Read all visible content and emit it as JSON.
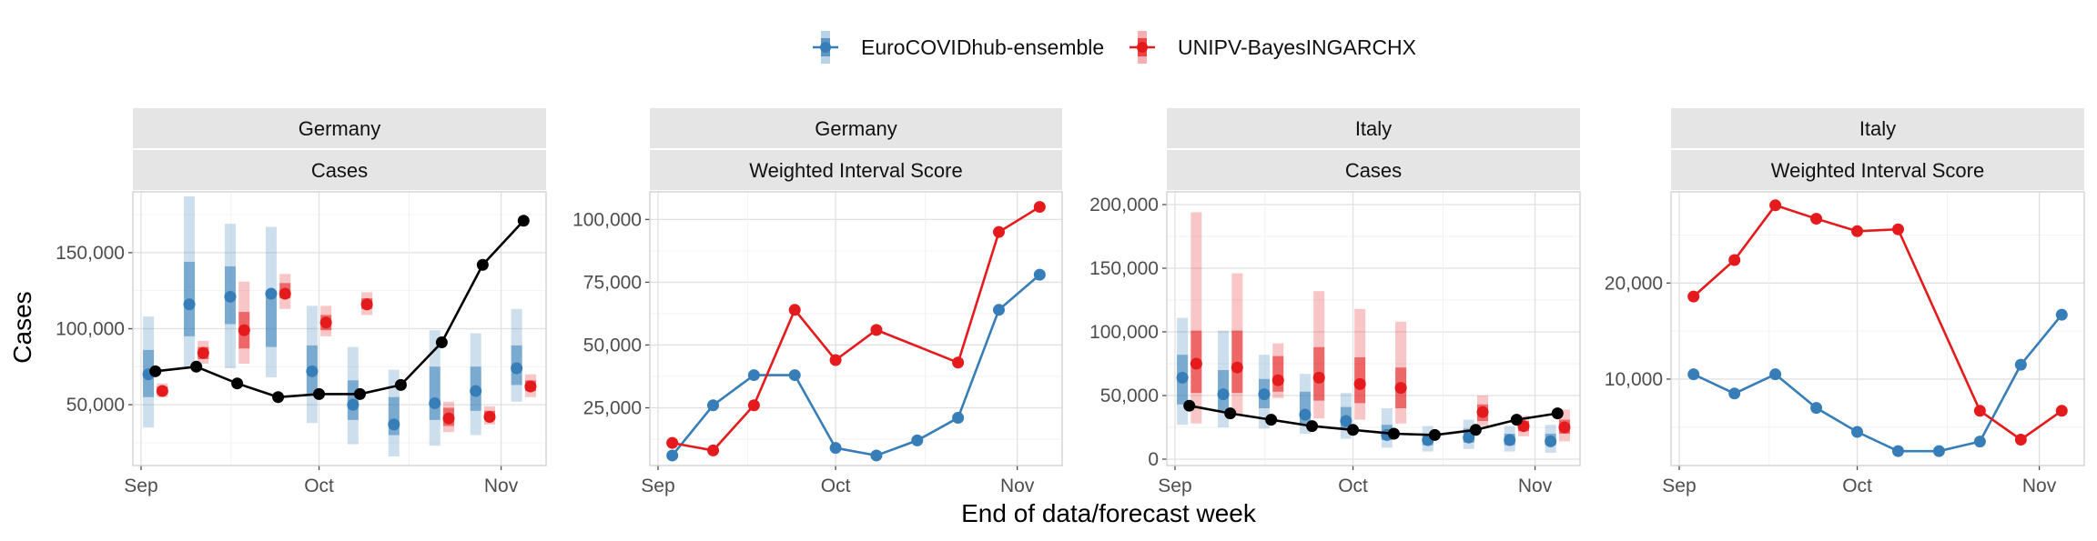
{
  "figure": {
    "xlabel": "End of data/forecast week",
    "ylabel": "Cases",
    "legend": {
      "placement": "top-center",
      "entries": [
        {
          "name": "EuroCOVIDhub-ensemble",
          "color": "#377eb8"
        },
        {
          "name": "UNIPV-BayesINGARCHX",
          "color": "#e41a1c"
        }
      ]
    },
    "x_ticks": [
      "Sep",
      "Oct",
      "Nov"
    ],
    "observed_color": "#000000"
  },
  "chart_data": [
    {
      "type": "line",
      "strip": [
        "Germany",
        "Cases"
      ],
      "x_weeks": [
        0,
        1,
        2,
        3,
        4,
        5,
        6,
        7,
        8,
        9
      ],
      "observed": [
        72000,
        75000,
        64000,
        55000,
        57000,
        57000,
        63000,
        91000,
        142000,
        171000
      ],
      "intervals": {
        "EuroCOVIDhub-ensemble": [
          {
            "median": 70000,
            "inner": [
              55000,
              86000
            ],
            "outer": [
              35000,
              108000
            ]
          },
          {
            "median": 116000,
            "inner": [
              95000,
              144000
            ],
            "outer": [
              75000,
              187000
            ]
          },
          {
            "median": 121000,
            "inner": [
              103000,
              141000
            ],
            "outer": [
              74000,
              169000
            ]
          },
          {
            "median": 123000,
            "inner": [
              88000,
              123000
            ],
            "outer": [
              68000,
              167000
            ]
          },
          {
            "median": 72000,
            "inner": [
              56000,
              89000
            ],
            "outer": [
              38000,
              115000
            ]
          },
          {
            "median": 50000,
            "inner": [
              40000,
              66000
            ],
            "outer": [
              24000,
              88000
            ]
          },
          {
            "median": 37000,
            "inner": [
              30000,
              55000
            ],
            "outer": [
              16000,
              73000
            ]
          },
          {
            "median": 51000,
            "inner": [
              40000,
              75000
            ],
            "outer": [
              23000,
              99000
            ]
          },
          {
            "median": 59000,
            "inner": [
              46000,
              75000
            ],
            "outer": [
              30000,
              97000
            ]
          },
          {
            "median": 74000,
            "inner": [
              63000,
              89000
            ],
            "outer": [
              52000,
              113000
            ]
          }
        ],
        "UNIPV-BayesINGARCHX": [
          {
            "median": 59000,
            "inner": [
              57000,
              62000
            ],
            "outer": [
              55000,
              64000
            ]
          },
          {
            "median": 84000,
            "inner": [
              80000,
              88000
            ],
            "outer": [
              77000,
              92000
            ]
          },
          {
            "median": 99000,
            "inner": [
              87000,
              111000
            ],
            "outer": [
              77000,
              131000
            ]
          },
          {
            "median": 123000,
            "inner": [
              120000,
              130000
            ],
            "outer": [
              113000,
              136000
            ]
          },
          {
            "median": 104000,
            "inner": [
              99000,
              109000
            ],
            "outer": [
              95000,
              115000
            ]
          },
          {
            "median": 116000,
            "inner": [
              113000,
              120000
            ],
            "outer": [
              109000,
              124000
            ]
          },
          null,
          {
            "median": 41000,
            "inner": [
              36000,
              48000
            ],
            "outer": [
              32000,
              52000
            ]
          },
          {
            "median": 42000,
            "inner": [
              40000,
              46000
            ],
            "outer": [
              37000,
              49000
            ]
          },
          {
            "median": 62000,
            "inner": [
              59000,
              66000
            ],
            "outer": [
              55000,
              70000
            ]
          }
        ]
      },
      "ylim": [
        10000,
        190000
      ],
      "y_ticks": [
        50000,
        100000,
        150000
      ],
      "y_tick_labels": [
        "50,000",
        "100,000",
        "150,000"
      ]
    },
    {
      "type": "line",
      "strip": [
        "Germany",
        "Weighted Interval Score"
      ],
      "x_weeks": [
        0,
        1,
        2,
        3,
        4,
        5,
        6,
        7,
        8,
        9
      ],
      "series": [
        {
          "name": "EuroCOVIDhub-ensemble",
          "values": [
            6000,
            26000,
            38000,
            38000,
            9000,
            6000,
            12000,
            21000,
            64000,
            78000
          ]
        },
        {
          "name": "UNIPV-BayesINGARCHX",
          "values": [
            11000,
            8000,
            26000,
            64000,
            44000,
            56000,
            null,
            43000,
            95000,
            105000
          ]
        }
      ],
      "ylim": [
        2000,
        111000
      ],
      "y_ticks": [
        25000,
        50000,
        75000,
        100000
      ],
      "y_tick_labels": [
        "25,000",
        "50,000",
        "75,000",
        "100,000"
      ]
    },
    {
      "type": "line",
      "strip": [
        "Italy",
        "Cases"
      ],
      "x_weeks": [
        0,
        1,
        2,
        3,
        4,
        5,
        6,
        7,
        8,
        9
      ],
      "observed": [
        42000,
        36000,
        31000,
        26000,
        23000,
        20000,
        19000,
        23000,
        31000,
        36000
      ],
      "intervals": {
        "EuroCOVIDhub-ensemble": [
          {
            "median": 64000,
            "inner": [
              43000,
              82000
            ],
            "outer": [
              27000,
              111000
            ]
          },
          {
            "median": 51000,
            "inner": [
              38000,
              70000
            ],
            "outer": [
              25000,
              101000
            ]
          },
          {
            "median": 51000,
            "inner": [
              40000,
              63000
            ],
            "outer": [
              24000,
              82000
            ]
          },
          {
            "median": 35000,
            "inner": [
              28000,
              53000
            ],
            "outer": [
              20000,
              67000
            ]
          },
          {
            "median": 30000,
            "inner": [
              24000,
              41000
            ],
            "outer": [
              16000,
              52000
            ]
          },
          {
            "median": 19000,
            "inner": [
              15000,
              27000
            ],
            "outer": [
              9000,
              40000
            ]
          },
          {
            "median": 15000,
            "inner": [
              11000,
              20000
            ],
            "outer": [
              6000,
              26000
            ]
          },
          {
            "median": 17000,
            "inner": [
              13000,
              24000
            ],
            "outer": [
              8000,
              31000
            ]
          },
          {
            "median": 15000,
            "inner": [
              11000,
              20000
            ],
            "outer": [
              6000,
              26000
            ]
          },
          {
            "median": 14000,
            "inner": [
              11000,
              20000
            ],
            "outer": [
              5000,
              27000
            ]
          }
        ],
        "UNIPV-BayesINGARCHX": [
          {
            "median": 75000,
            "inner": [
              52000,
              101000
            ],
            "outer": [
              28000,
              194000
            ]
          },
          {
            "median": 72000,
            "inner": [
              52000,
              101000
            ],
            "outer": [
              34000,
              146000
            ]
          },
          {
            "median": 62000,
            "inner": [
              53000,
              81000
            ],
            "outer": [
              48000,
              91000
            ]
          },
          {
            "median": 64000,
            "inner": [
              46000,
              88000
            ],
            "outer": [
              32000,
              132000
            ]
          },
          {
            "median": 59000,
            "inner": [
              44000,
              80000
            ],
            "outer": [
              31000,
              118000
            ]
          },
          {
            "median": 56000,
            "inner": [
              40000,
              72000
            ],
            "outer": [
              28000,
              108000
            ]
          },
          null,
          {
            "median": 37000,
            "inner": [
              30000,
              43000
            ],
            "outer": [
              26000,
              50000
            ]
          },
          {
            "median": 26000,
            "inner": [
              22000,
              30000
            ],
            "outer": [
              18000,
              34000
            ]
          },
          {
            "median": 25000,
            "inner": [
              20000,
              31000
            ],
            "outer": [
              14000,
              39000
            ]
          }
        ]
      },
      "ylim": [
        -5000,
        210000
      ],
      "y_ticks": [
        0,
        50000,
        100000,
        150000,
        200000
      ],
      "y_tick_labels": [
        "0",
        "50,000",
        "100,000",
        "150,000",
        "200,000"
      ]
    },
    {
      "type": "line",
      "strip": [
        "Italy",
        "Weighted Interval Score"
      ],
      "x_weeks": [
        0,
        1,
        2,
        3,
        4,
        5,
        6,
        7,
        8,
        9
      ],
      "series": [
        {
          "name": "EuroCOVIDhub-ensemble",
          "values": [
            10500,
            8500,
            10500,
            7000,
            4500,
            2500,
            2500,
            3500,
            11500,
            16700
          ]
        },
        {
          "name": "UNIPV-BayesINGARCHX",
          "values": [
            18600,
            22400,
            28100,
            26700,
            25400,
            25600,
            null,
            6700,
            3700,
            6700
          ]
        }
      ],
      "ylim": [
        1000,
        29500
      ],
      "y_ticks": [
        10000,
        20000
      ],
      "y_tick_labels": [
        "10,000",
        "20,000"
      ]
    }
  ]
}
